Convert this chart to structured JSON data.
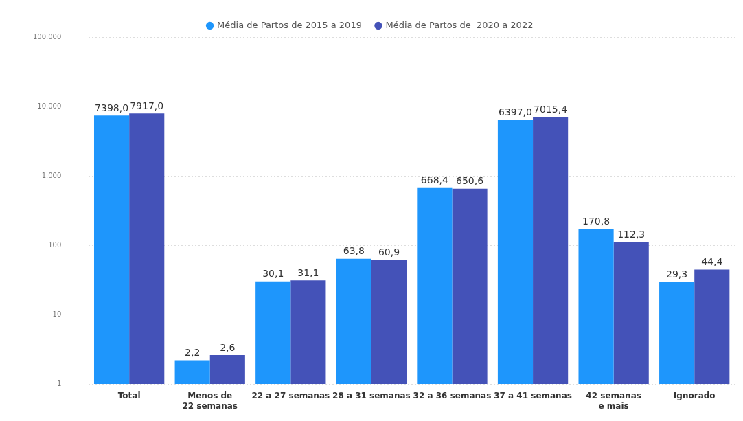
{
  "chart_data": {
    "type": "bar",
    "categories": [
      "Total",
      "Menos de 22 semanas",
      "22 a 27 semanas",
      "28 a 31 semanas",
      "32 a 36 semanas",
      "37 a 41 semanas",
      "42 semanas e mais",
      "Ignorado"
    ],
    "series": [
      {
        "name": "Média de Partos de 2015 a 2019",
        "color": "#1e96fc",
        "values": [
          7398.0,
          2.2,
          30.1,
          63.8,
          668.4,
          6397.0,
          170.8,
          29.3
        ],
        "value_labels": [
          "7398,0",
          "2,2",
          "30,1",
          "63,8",
          "668,4",
          "6397,0",
          "170,8",
          "29,3"
        ]
      },
      {
        "name": "Média de Partos de  2020 a 2022",
        "color": "#4452b8",
        "values": [
          7917.0,
          2.6,
          31.1,
          60.9,
          650.6,
          7015.4,
          112.3,
          44.4
        ],
        "value_labels": [
          "7917,0",
          "2,6",
          "31,1",
          "60,9",
          "650,6",
          "7015,4",
          "112,3",
          "44,4"
        ]
      }
    ],
    "log": "y",
    "ylim": [
      1,
      100000
    ],
    "yticks": [
      1,
      10,
      100,
      {
        "value": 1000,
        "label": "1.000"
      },
      {
        "value": 10000,
        "label": "10.000"
      },
      {
        "value": 100000,
        "label": "100.000"
      }
    ],
    "grid": "y",
    "legend": "top"
  }
}
